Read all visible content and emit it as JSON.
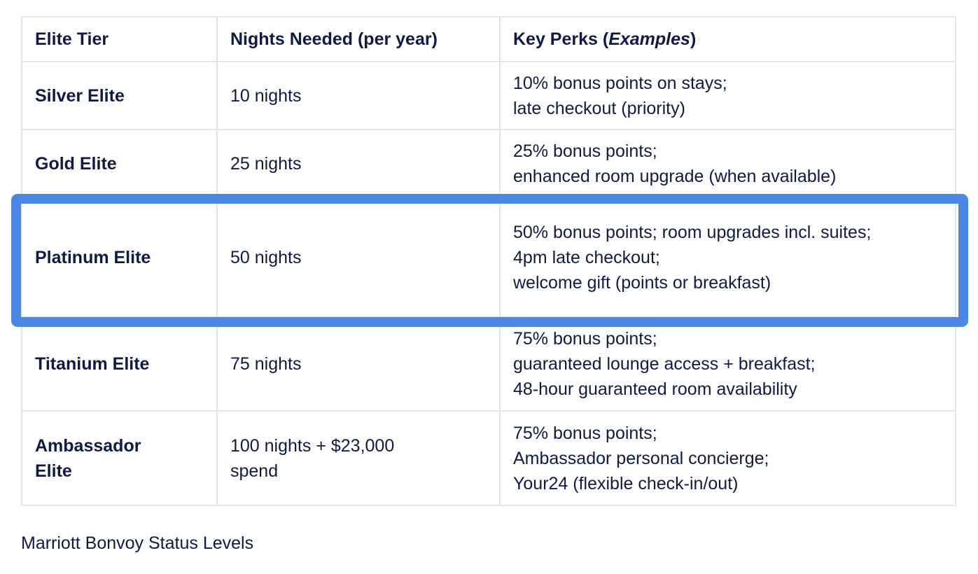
{
  "table": {
    "headers": {
      "tier": "Elite Tier",
      "nights": "Nights Needed (per year)",
      "perks_prefix": "Key Perks (",
      "perks_italic": "Examples",
      "perks_suffix": ")"
    },
    "rows": [
      {
        "tier": "Silver Elite",
        "nights": "10 nights",
        "perks": [
          "10% bonus points on stays;",
          "late checkout (priority)"
        ]
      },
      {
        "tier": "Gold Elite",
        "nights": "25 nights",
        "perks": [
          "25% bonus points;",
          "enhanced room upgrade (when available)"
        ]
      },
      {
        "tier": "Platinum Elite",
        "nights": "50 nights",
        "perks": [
          "50% bonus points; room upgrades incl. suites;",
          "4pm late checkout;",
          "welcome gift (points or breakfast)"
        ],
        "highlighted": true
      },
      {
        "tier": "Titanium Elite",
        "nights": "75 nights",
        "perks": [
          "75% bonus points;",
          "guaranteed lounge access + breakfast;",
          "48-hour guaranteed room availability"
        ]
      },
      {
        "tier": "Ambassador Elite",
        "nights": "100 nights + $23,000 spend",
        "perks": [
          "75% bonus points;",
          "Ambassador personal concierge;",
          "Your24 (flexible check-in/out)"
        ]
      }
    ]
  },
  "caption": "Marriott Bonvoy Status Levels",
  "colors": {
    "highlight": "#4a86e4",
    "text": "#111a47",
    "border": "#e2e5ec"
  }
}
